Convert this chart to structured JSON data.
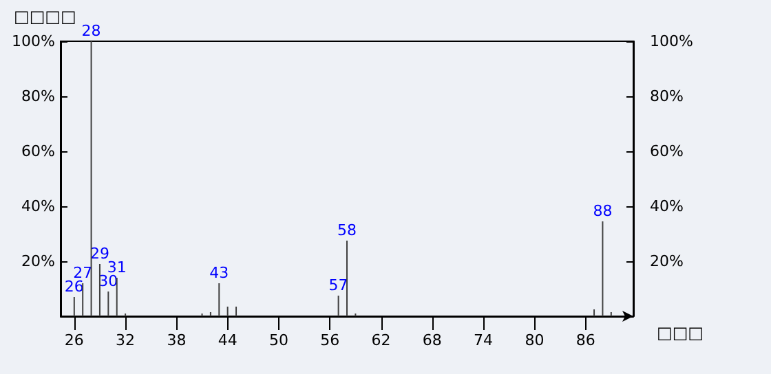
{
  "chart_data": {
    "type": "bar",
    "ylabel": "□□□□",
    "xlabel": "□□□",
    "x": [
      26,
      27,
      28,
      29,
      30,
      31,
      32,
      41,
      42,
      43,
      44,
      45,
      57,
      58,
      59,
      87,
      88,
      89
    ],
    "values": [
      7,
      12,
      100,
      19,
      9,
      14,
      1,
      1,
      1.5,
      12,
      3.5,
      3.5,
      7.5,
      27.5,
      1,
      2.5,
      34.5,
      1.5
    ],
    "annotations": [
      {
        "text": "26",
        "x": 26,
        "y": 7
      },
      {
        "text": "27",
        "x": 27,
        "y": 12
      },
      {
        "text": "28",
        "x": 28,
        "y": 100
      },
      {
        "text": "29",
        "x": 29,
        "y": 19
      },
      {
        "text": "30",
        "x": 30,
        "y": 9
      },
      {
        "text": "31",
        "x": 31,
        "y": 14
      },
      {
        "text": "43",
        "x": 43,
        "y": 12
      },
      {
        "text": "57",
        "x": 57,
        "y": 7.5
      },
      {
        "text": "58",
        "x": 58,
        "y": 27.5
      },
      {
        "text": "88",
        "x": 88,
        "y": 34.5
      }
    ],
    "color": "#404040",
    "xlim": [
      24.4,
      91.6
    ],
    "xticks": [
      26,
      32,
      38,
      44,
      50,
      56,
      62,
      68,
      74,
      80,
      86
    ],
    "ylim": [
      0,
      100
    ],
    "yticks": [
      {
        "value": 20,
        "label": "20%"
      },
      {
        "value": 40,
        "label": "40%"
      },
      {
        "value": 60,
        "label": "60%"
      },
      {
        "value": 80,
        "label": "80%"
      },
      {
        "value": 100,
        "label": "100%"
      }
    ],
    "y2lim": [
      0,
      100
    ],
    "y2ticks": [
      {
        "value": 20,
        "label": "20%"
      },
      {
        "value": 40,
        "label": "40%"
      },
      {
        "value": 60,
        "label": "60%"
      },
      {
        "value": 80,
        "label": "80%"
      },
      {
        "value": 100,
        "label": "100%"
      }
    ],
    "grid": false
  }
}
